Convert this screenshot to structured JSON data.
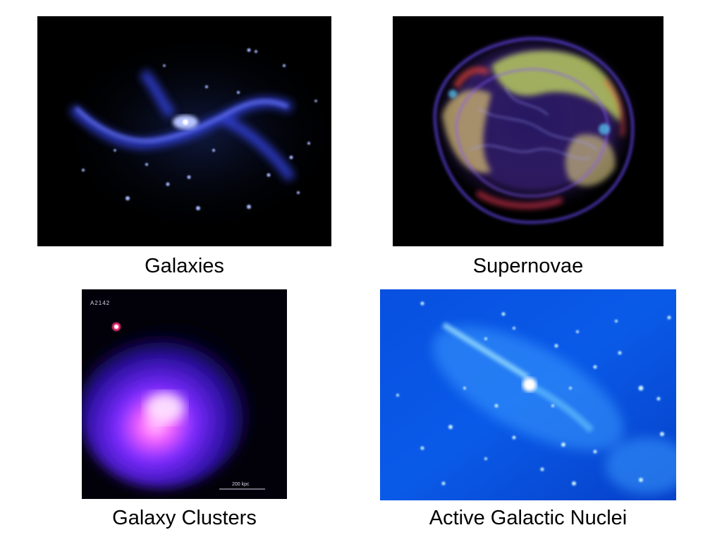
{
  "panels": [
    {
      "id": "galaxies",
      "caption": "Galaxies"
    },
    {
      "id": "supernovae",
      "caption": "Supernovae"
    },
    {
      "id": "clusters",
      "caption": "Galaxy Clusters",
      "image_label": "A2142",
      "scale_bar_label": "200 kpc"
    },
    {
      "id": "agn",
      "caption": "Active Galactic Nuclei"
    }
  ],
  "colors": {
    "galaxy_emission": "#3a4cff",
    "supernova_shell": "#6a3cff",
    "cluster_core": "#ff66ff",
    "agn_background": "#0a49d8"
  }
}
